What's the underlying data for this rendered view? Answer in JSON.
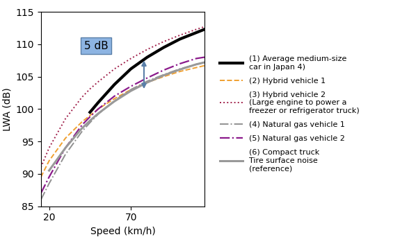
{
  "chart_data": {
    "type": "line",
    "y_label": "LWA (dB)",
    "x_label": "Speed (km/h)",
    "x": [
      15,
      20,
      30,
      40,
      45,
      50,
      60,
      70,
      80,
      90,
      100,
      110,
      115
    ],
    "xlim": [
      15,
      115
    ],
    "xticks": [
      20,
      70
    ],
    "ylim": [
      85,
      115
    ],
    "yticks": [
      85,
      90,
      95,
      100,
      105,
      110,
      115
    ],
    "legend": "center left",
    "series": [
      {
        "name": "(1) Average medium-size\ncar in Japan 4)",
        "color": "#000000",
        "line_style": "solid",
        "values": [
          null,
          null,
          null,
          null,
          99.5,
          101.0,
          103.8,
          106.2,
          108.0,
          109.5,
          110.8,
          111.8,
          112.3
        ]
      },
      {
        "name": "(2) Hybrid vehicle 1",
        "color": "#f0a030",
        "line_style": "dashed",
        "values": [
          89.5,
          92.0,
          95.5,
          98.0,
          99.0,
          100.0,
          101.6,
          103.0,
          104.1,
          105.0,
          105.8,
          106.4,
          106.7
        ]
      },
      {
        "name": "(3) Hybrid vehicle 2\n(Large engine to power a\nfreezer or refrigerator truck)",
        "color": "#a0204a",
        "line_style": "dotted",
        "values": [
          91.0,
          94.0,
          98.5,
          101.8,
          103.1,
          104.2,
          106.2,
          107.8,
          109.2,
          110.4,
          111.4,
          112.3,
          112.7
        ]
      },
      {
        "name": "(4) Natural gas vehicle 1",
        "color": "#909090",
        "line_style": "dashdot",
        "values": [
          86.0,
          88.5,
          93.0,
          96.5,
          97.9,
          99.2,
          101.3,
          103.0,
          104.3,
          105.3,
          106.2,
          106.9,
          107.2
        ]
      },
      {
        "name": "(5) Natural gas vehicle 2",
        "color": "#8b1a8b",
        "line_style": "dashdot",
        "values": [
          87.0,
          89.5,
          94.0,
          97.5,
          98.8,
          100.0,
          102.0,
          103.5,
          104.8,
          106.0,
          107.0,
          107.8,
          108.0
        ]
      },
      {
        "name": "(6) Compact truck\nTire surface noise\n(reference)",
        "color": "#999999",
        "line_style": "solid",
        "values": [
          null,
          90.5,
          94.0,
          97.0,
          98.2,
          99.3,
          101.2,
          102.8,
          104.1,
          105.2,
          106.1,
          106.9,
          107.2
        ]
      }
    ],
    "annotations": [
      {
        "text": "5 dB",
        "x": 78,
        "y_from": 107.8,
        "y_to": 102.8
      }
    ]
  }
}
